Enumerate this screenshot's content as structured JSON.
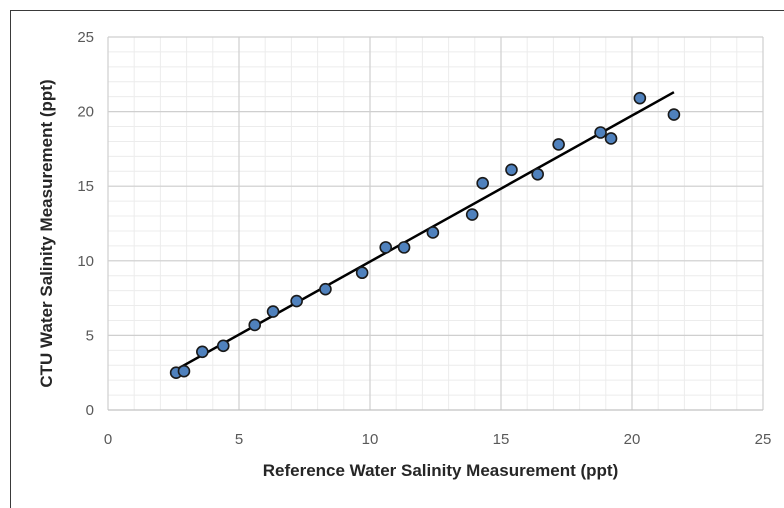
{
  "chart_data": {
    "type": "scatter",
    "title": "",
    "xlabel": "Reference Water Salinity Measurement (ppt)",
    "ylabel": "CTU Water Salinity Measurement (ppt)",
    "xlim": [
      0,
      25
    ],
    "ylim": [
      0,
      25
    ],
    "x_ticks": [
      "0",
      "5",
      "10",
      "15",
      "20",
      "25"
    ],
    "y_ticks": [
      "0",
      "5",
      "10",
      "15",
      "20",
      "25"
    ],
    "major_grid": true,
    "minor_grid": true,
    "legend": "none",
    "marker_color": "#4f81bd",
    "marker_edge_color": "#1a1a1a",
    "trendline_color": "#000000",
    "points": [
      {
        "x": 2.6,
        "y": 2.5
      },
      {
        "x": 2.9,
        "y": 2.6
      },
      {
        "x": 3.6,
        "y": 3.9
      },
      {
        "x": 4.4,
        "y": 4.3
      },
      {
        "x": 5.6,
        "y": 5.7
      },
      {
        "x": 6.3,
        "y": 6.6
      },
      {
        "x": 7.2,
        "y": 7.3
      },
      {
        "x": 8.3,
        "y": 8.1
      },
      {
        "x": 9.7,
        "y": 9.2
      },
      {
        "x": 10.6,
        "y": 10.9
      },
      {
        "x": 11.3,
        "y": 10.9
      },
      {
        "x": 12.4,
        "y": 11.9
      },
      {
        "x": 13.9,
        "y": 13.1
      },
      {
        "x": 14.3,
        "y": 15.2
      },
      {
        "x": 15.4,
        "y": 16.1
      },
      {
        "x": 16.4,
        "y": 15.8
      },
      {
        "x": 17.2,
        "y": 17.8
      },
      {
        "x": 18.8,
        "y": 18.6
      },
      {
        "x": 19.2,
        "y": 18.2
      },
      {
        "x": 20.3,
        "y": 20.9
      },
      {
        "x": 21.6,
        "y": 19.8
      }
    ],
    "trendline": {
      "x": [
        2.6,
        21.6
      ],
      "y": [
        2.7,
        21.3
      ]
    }
  }
}
